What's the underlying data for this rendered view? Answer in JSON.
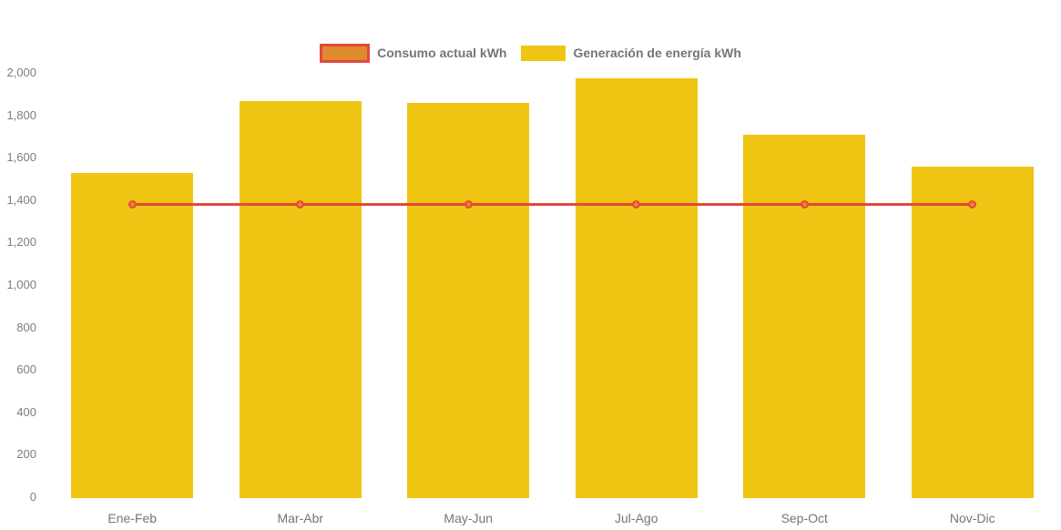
{
  "chart_data": {
    "type": "bar",
    "subtype": "bar-with-line-overlay",
    "categories": [
      "Ene-Feb",
      "Mar-Abr",
      "May-Jun",
      "Jul-Ago",
      "Sep-Oct",
      "Nov-Dic"
    ],
    "series": [
      {
        "name": "Consumo actual kWh",
        "type": "line",
        "color": "#e4483d",
        "marker_fill": "#e08a2e",
        "values": [
          1380,
          1380,
          1380,
          1380,
          1380,
          1380
        ]
      },
      {
        "name": "Generación de energía kWh",
        "type": "bar",
        "color": "#f0c413",
        "values": [
          1530,
          1865,
          1860,
          1975,
          1710,
          1560
        ]
      }
    ],
    "title": "",
    "xlabel": "",
    "ylabel": "",
    "ylim": [
      0,
      2000
    ],
    "yticks": [
      {
        "value": 0,
        "label": "0"
      },
      {
        "value": 200,
        "label": "200"
      },
      {
        "value": 400,
        "label": "400"
      },
      {
        "value": 600,
        "label": "600"
      },
      {
        "value": 800,
        "label": "800"
      },
      {
        "value": 1000,
        "label": "1,000"
      },
      {
        "value": 1200,
        "label": "1,200"
      },
      {
        "value": 1400,
        "label": "1,400"
      },
      {
        "value": 1600,
        "label": "1,600"
      },
      {
        "value": 1800,
        "label": "1,800"
      },
      {
        "value": 2000,
        "label": "2,000"
      }
    ],
    "grid": false,
    "legend_position": "top-center",
    "axis_text_color": "#7d7d7d"
  }
}
